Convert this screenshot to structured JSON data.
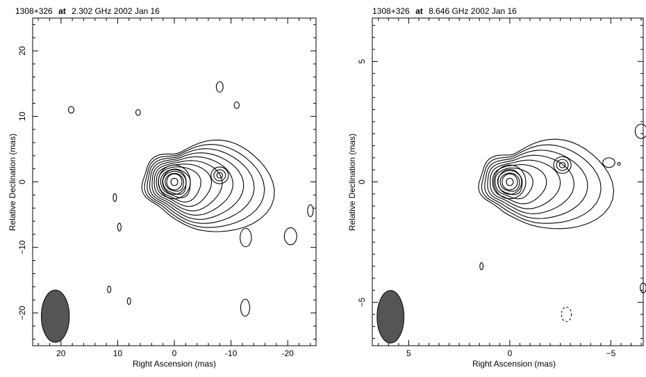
{
  "chart_data": [
    {
      "type": "contour",
      "title": {
        "source": "1308+326",
        "connector": "at",
        "rest": "2.302 GHz 2002 Jan 16"
      },
      "xlabel": "Right Ascension  (mas)",
      "ylabel": "Relative Declination  (mas)",
      "xlim": [
        25,
        -25
      ],
      "ylim": [
        -25,
        25
      ],
      "xticks": [
        {
          "value": 20,
          "label": "20"
        },
        {
          "value": 10,
          "label": "10"
        },
        {
          "value": 0,
          "label": "0"
        },
        {
          "value": -10,
          "label": "-10"
        },
        {
          "value": -20,
          "label": "-20"
        }
      ],
      "yticks": [
        {
          "value": 20,
          "label": "20"
        },
        {
          "value": 10,
          "label": "10"
        },
        {
          "value": 0,
          "label": "0"
        },
        {
          "value": -10,
          "label": "−10"
        },
        {
          "value": -20,
          "label": "−20"
        }
      ],
      "core": {
        "x": 0,
        "y": 0
      },
      "knot": {
        "x": -8,
        "y": 1
      },
      "beam": {
        "x": 21,
        "y": -20.5,
        "major": 4.2,
        "minor": 2.6
      },
      "contour_levels": 11,
      "islands": [
        {
          "x": 18.2,
          "y": 11,
          "rx": 0.5,
          "ry": 0.5
        },
        {
          "x": 6.4,
          "y": 10.6,
          "rx": 0.4,
          "ry": 0.45
        },
        {
          "x": -8,
          "y": 14.5,
          "rx": 0.6,
          "ry": 0.8
        },
        {
          "x": -11,
          "y": 11.7,
          "rx": 0.45,
          "ry": 0.5
        },
        {
          "x": 10.5,
          "y": -2.4,
          "rx": 0.3,
          "ry": 0.6
        },
        {
          "x": 9.7,
          "y": -6.9,
          "rx": 0.3,
          "ry": 0.6
        },
        {
          "x": -12.6,
          "y": -8.5,
          "rx": 1,
          "ry": 1.4
        },
        {
          "x": -20.5,
          "y": -8.3,
          "rx": 1.1,
          "ry": 1.3
        },
        {
          "x": -24,
          "y": -4.4,
          "rx": 0.5,
          "ry": 0.9
        },
        {
          "x": 11.5,
          "y": -16.4,
          "rx": 0.3,
          "ry": 0.5
        },
        {
          "x": 8,
          "y": -18.2,
          "rx": 0.3,
          "ry": 0.5
        },
        {
          "x": -12.5,
          "y": -19.2,
          "rx": 0.8,
          "ry": 1.3
        }
      ]
    },
    {
      "type": "contour",
      "title": {
        "source": "1308+326",
        "connector": "at",
        "rest": "8.646 GHz 2002 Jan 16"
      },
      "xlabel": "Right Ascension  (mas)",
      "ylabel": "Relative Declination  (mas)",
      "xlim": [
        6.8,
        -6.6
      ],
      "ylim": [
        -6.8,
        6.8
      ],
      "xticks": [
        {
          "value": 5,
          "label": "5"
        },
        {
          "value": 0,
          "label": "0"
        },
        {
          "value": -5,
          "label": "−5"
        }
      ],
      "yticks": [
        {
          "value": 5,
          "label": "5"
        },
        {
          "value": 0,
          "label": "0"
        },
        {
          "value": -5,
          "label": "−5"
        }
      ],
      "core": {
        "x": 0,
        "y": 0
      },
      "knot": {
        "x": -2.6,
        "y": 0.7
      },
      "beam": {
        "x": 5.9,
        "y": -5.6,
        "major": 1.15,
        "minor": 0.7
      },
      "contour_levels": 9,
      "islands": [
        {
          "x": 1.4,
          "y": -3.5,
          "rx": 0.08,
          "ry": 0.15
        },
        {
          "x": -4.9,
          "y": 0.8,
          "rx": 0.3,
          "ry": 0.2
        },
        {
          "x": -5.4,
          "y": 0.75,
          "rx": 0.05,
          "ry": 0.05
        },
        {
          "x": -6.5,
          "y": 2.1,
          "rx": 0.3,
          "ry": 0.3
        },
        {
          "x": -6.6,
          "y": -4.4,
          "rx": 0.15,
          "ry": 0.2
        },
        {
          "x": -2.8,
          "y": -5.5,
          "rx": 0.25,
          "ry": 0.3,
          "dashed": true
        }
      ]
    }
  ]
}
